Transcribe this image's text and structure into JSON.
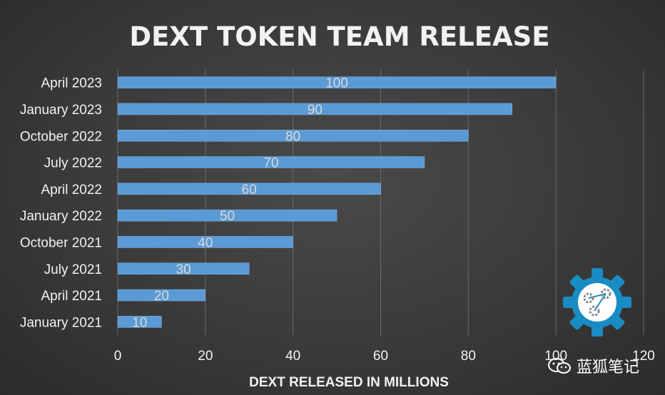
{
  "chart_data": {
    "type": "bar",
    "orientation": "horizontal",
    "title": "DEXT TOKEN TEAM RELEASE",
    "xlabel": "DEXT RELEASED IN MILLIONS",
    "ylabel": "",
    "categories": [
      "January 2021",
      "April 2021",
      "July 2021",
      "October 2021",
      "January 2022",
      "April 2022",
      "July 2022",
      "October 2022",
      "January 2023",
      "April 2023"
    ],
    "values": [
      10,
      20,
      30,
      40,
      50,
      60,
      70,
      80,
      90,
      100
    ],
    "xlim": [
      0,
      120
    ],
    "xticks": [
      "0",
      "20",
      "40",
      "60",
      "80",
      "100",
      "120"
    ],
    "grid": "vertical",
    "legend": "none",
    "bar_color": "#5b9bd5",
    "background_color": "#3a3a3a"
  },
  "watermark": {
    "text": "蓝狐笔记",
    "icon": "wechat-icon"
  },
  "logo": {
    "icon": "gear-network-icon",
    "colors": {
      "gear": "#1a8cc4",
      "inner": "#ffffff"
    }
  }
}
